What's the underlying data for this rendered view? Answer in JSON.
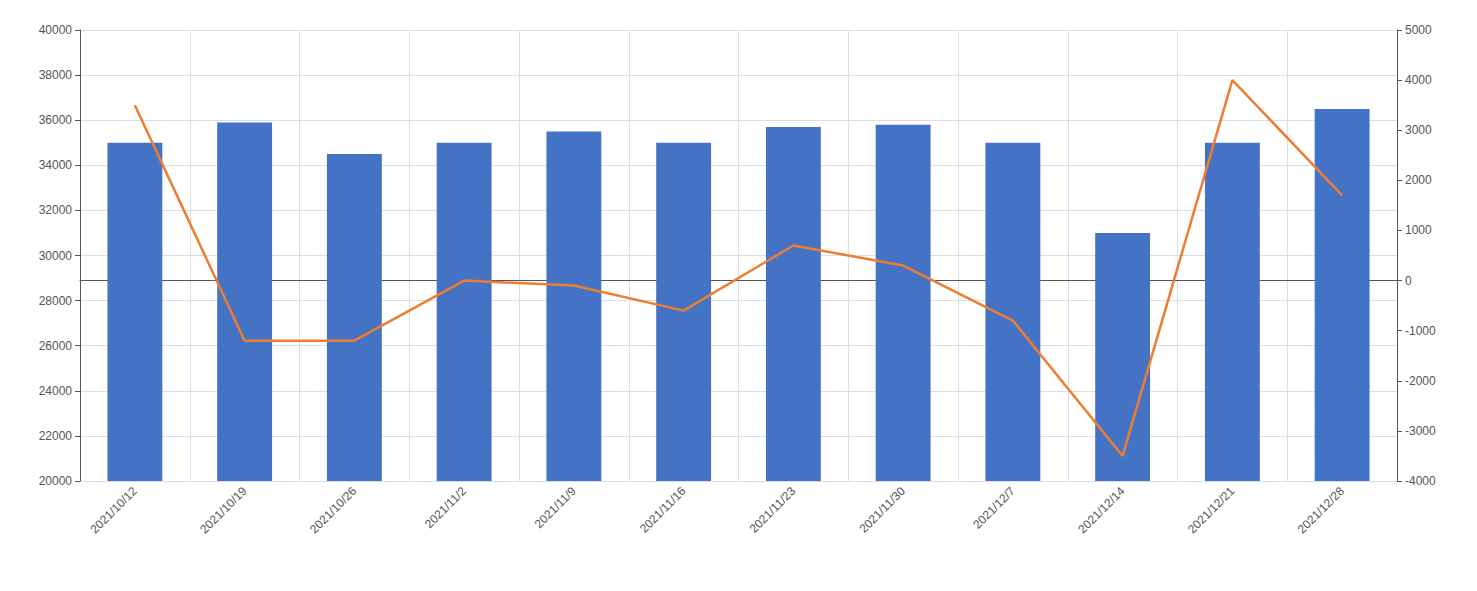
{
  "chart_data": {
    "type": "bar",
    "categories": [
      "2021/10/12",
      "2021/10/19",
      "2021/10/26",
      "2021/11/2",
      "2021/11/9",
      "2021/11/16",
      "2021/11/23",
      "2021/11/30",
      "2021/12/7",
      "2021/12/14",
      "2021/12/21",
      "2021/12/28"
    ],
    "series": [
      {
        "type": "bar",
        "color": "#4472C4",
        "values": [
          35000,
          35900,
          34500,
          35000,
          35500,
          35000,
          35700,
          35800,
          35000,
          31000,
          35000,
          36500
        ]
      },
      {
        "type": "line",
        "color": "#ED7D31",
        "axis": "y2",
        "values": [
          3500,
          -1200,
          -1200,
          0,
          -100,
          -600,
          700,
          300,
          -800,
          -3500,
          4000,
          1700
        ]
      }
    ],
    "ylim": [
      20000,
      40000
    ],
    "yticks": [
      20000,
      22000,
      24000,
      26000,
      28000,
      30000,
      32000,
      34000,
      36000,
      38000,
      40000
    ],
    "y2lim": [
      -4000,
      5000
    ],
    "y2ticks": [
      -4000,
      -3000,
      -2000,
      -1000,
      0,
      1000,
      2000,
      3000,
      4000,
      5000
    ],
    "grid": true
  }
}
